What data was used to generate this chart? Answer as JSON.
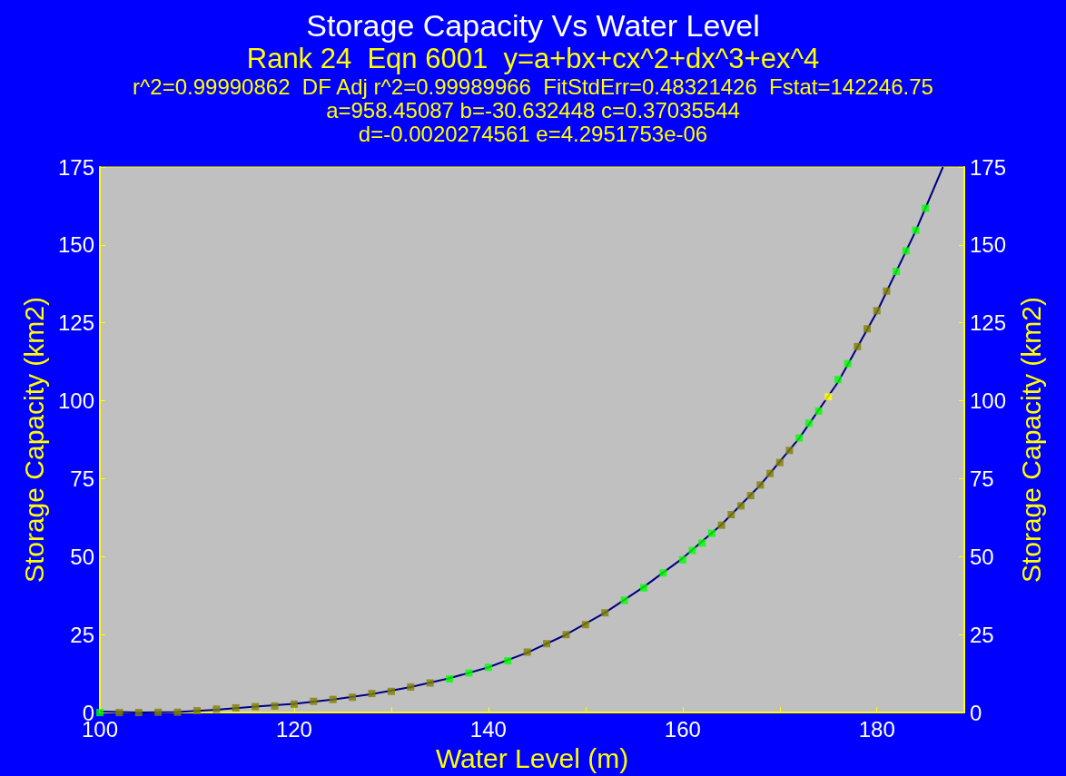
{
  "chart_data": {
    "type": "scatter",
    "title": "Storage Capacity Vs Water Level",
    "subtitle": "Rank 24  Eqn 6001  y=a+bx+cx^2+dx^3+ex^4",
    "annotations": [
      "r^2=0.99990862  DF Adj r^2=0.99989966  FitStdErr=0.48321426  Fstat=142246.75",
      "a=958.45087 b=-30.632448 c=0.37035544",
      "d=-0.0020274561 e=4.2951753e-06"
    ],
    "xlabel": "Water Level (m)",
    "ylabel": "Storage Capacity (km2)",
    "y2label": "Storage Capacity (km2)",
    "series": [
      {
        "marker": "square",
        "x": [
          100,
          102,
          104,
          106,
          108,
          110,
          112,
          114,
          116,
          118,
          120,
          122,
          124,
          126,
          128,
          130,
          132,
          134,
          136,
          138,
          140,
          142,
          144,
          146,
          148,
          150,
          152,
          154,
          156,
          158,
          160,
          161,
          162,
          163,
          164,
          165,
          166,
          167,
          168,
          169,
          170,
          171,
          172,
          173,
          174,
          175,
          176,
          177,
          178,
          179,
          180,
          181,
          182,
          183,
          184,
          185
        ],
        "values": [
          0,
          0,
          0,
          0.1,
          0.1,
          0.6,
          1.1,
          1.5,
          1.9,
          2.1,
          2.7,
          3.6,
          4.2,
          4.9,
          6.1,
          6.8,
          8.2,
          9.5,
          10.8,
          12.7,
          14.5,
          16.6,
          19.4,
          22.1,
          25,
          28.2,
          32,
          36,
          40,
          44.8,
          49,
          52,
          54.4,
          57.5,
          60.1,
          63.5,
          66.3,
          69.6,
          73,
          76.7,
          80.2,
          84.1,
          88.1,
          92.8,
          96.7,
          101.3,
          106.8,
          111.9,
          117.4,
          123.1,
          128.9,
          135.2,
          141.5,
          148.1,
          154.7,
          161.8
        ],
        "colors": [
          "#00ff00",
          "#808000",
          "#808000",
          "#808000",
          "#808000",
          "#808000",
          "#808000",
          "#808000",
          "#808000",
          "#808000",
          "#808000",
          "#808000",
          "#808000",
          "#808000",
          "#808000",
          "#808000",
          "#808000",
          "#808000",
          "#00ff00",
          "#00ff00",
          "#00ff00",
          "#00ff00",
          "#808000",
          "#808000",
          "#808000",
          "#808000",
          "#808000",
          "#00ff00",
          "#00ff00",
          "#00ff00",
          "#00ff00",
          "#00ff00",
          "#00ff00",
          "#00ff00",
          "#808000",
          "#808000",
          "#808000",
          "#808000",
          "#808000",
          "#808000",
          "#808000",
          "#808000",
          "#00ff00",
          "#00ff00",
          "#00ff00",
          "#ffff00",
          "#00ff00",
          "#00ff00",
          "#808000",
          "#808000",
          "#808000",
          "#808000",
          "#00ff00",
          "#00ff00",
          "#00ff00",
          "#00ff00"
        ]
      },
      {
        "type": "line",
        "marker": "none",
        "color": "#000080",
        "x": [
          100,
          104,
          108,
          112,
          116,
          120,
          124,
          128,
          132,
          136,
          140,
          144,
          148,
          152,
          156,
          160,
          164,
          168,
          172,
          176,
          180,
          184,
          186.8
        ],
        "values": [
          0.3,
          0,
          0.2,
          0.9,
          1.9,
          2.8,
          4.2,
          5.9,
          8.2,
          11,
          14.5,
          19.2,
          25,
          32,
          40.3,
          49.5,
          60.3,
          73,
          88,
          106,
          128.5,
          154.5,
          175
        ]
      }
    ],
    "xlim": [
      100,
      189
    ],
    "xticks": [
      100,
      {
        "value": 110,
        "label": null
      },
      120,
      {
        "value": 130,
        "label": null
      },
      140,
      {
        "value": 150,
        "label": null
      },
      160,
      {
        "value": 170,
        "label": null
      },
      180
    ],
    "ylim": [
      0,
      175
    ],
    "yticks": [
      0,
      25,
      50,
      75,
      100,
      125,
      150,
      175
    ],
    "y2lim": [
      0,
      175
    ],
    "y2ticks": [
      0,
      25,
      50,
      75,
      100,
      125,
      150,
      175
    ],
    "grid": false
  }
}
